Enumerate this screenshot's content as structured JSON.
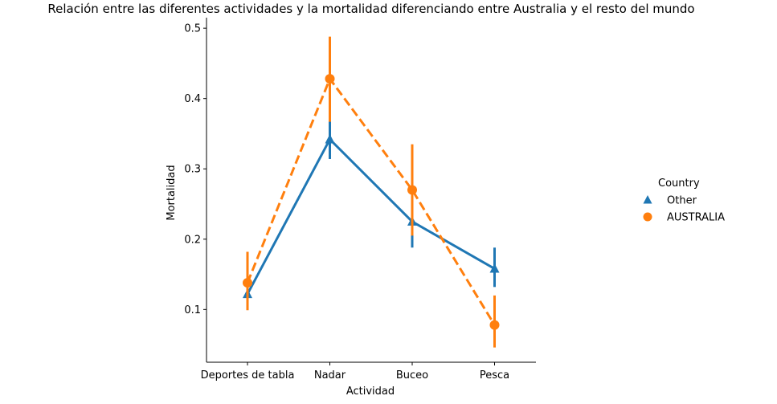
{
  "chart_data": {
    "type": "line",
    "title": "Relación entre las diferentes actividades y la mortalidad diferenciando entre Australia y el resto del mundo",
    "xlabel": "Actividad",
    "ylabel": "Mortalidad",
    "categories": [
      "Deportes de tabla",
      "Nadar",
      "Buceo",
      "Pesca"
    ],
    "ylim": [
      0.025,
      0.515
    ],
    "yticks": [
      0.1,
      0.2,
      0.3,
      0.4,
      0.5
    ],
    "ytick_labels": [
      "0.1",
      "0.2",
      "0.3",
      "0.4",
      "0.5"
    ],
    "grid": false,
    "legend": {
      "title": "Country",
      "placement": "right"
    },
    "series": [
      {
        "name": "Other",
        "color": "#1f77b4",
        "marker": "triangle",
        "linestyle": "solid",
        "values": [
          0.122,
          0.342,
          0.225,
          0.158
        ],
        "ci_low": [
          0.122,
          0.314,
          0.188,
          0.132
        ],
        "ci_high": [
          0.122,
          0.369,
          0.262,
          0.188
        ]
      },
      {
        "name": "AUSTRALIA",
        "color": "#ff7f0e",
        "marker": "circle",
        "linestyle": "dashed",
        "values": [
          0.138,
          0.428,
          0.27,
          0.078
        ],
        "ci_low": [
          0.099,
          0.367,
          0.205,
          0.046
        ],
        "ci_high": [
          0.182,
          0.488,
          0.335,
          0.12
        ]
      }
    ]
  }
}
